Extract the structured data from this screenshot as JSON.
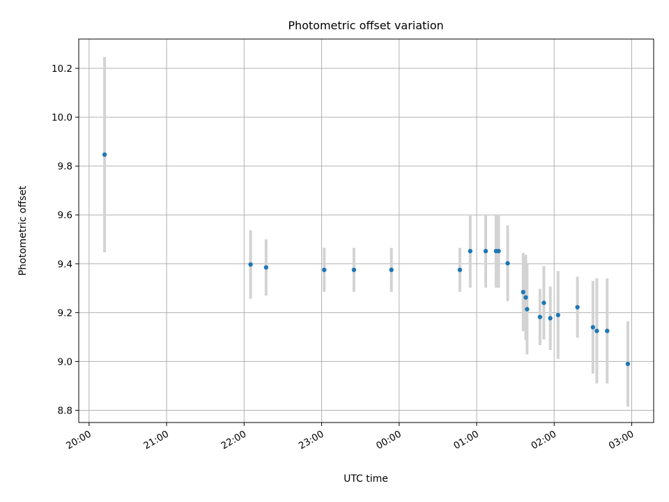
{
  "chart_data": {
    "type": "scatter",
    "title": "Photometric offset variation",
    "xlabel": "UTC time",
    "ylabel": "Photometric offset",
    "xlim": [
      "19:52",
      "03:17"
    ],
    "ylim": [
      8.75,
      10.32
    ],
    "x_ticks": [
      "20:00",
      "21:00",
      "22:00",
      "23:00",
      "00:00",
      "01:00",
      "02:00",
      "03:00"
    ],
    "y_ticks": [
      8.8,
      9.0,
      9.2,
      9.4,
      9.6,
      9.8,
      10.0,
      10.2
    ],
    "grid": true,
    "series": [
      {
        "errorbar_color": "#d3d3d3",
        "marker_color": "#1f77b4",
        "points": [
          {
            "t": "20:12",
            "y": 9.847,
            "err": 0.4
          },
          {
            "t": "22:05",
            "y": 9.397,
            "err": 0.14
          },
          {
            "t": "22:17",
            "y": 9.385,
            "err": 0.115
          },
          {
            "t": "23:02",
            "y": 9.375,
            "err": 0.09
          },
          {
            "t": "23:25",
            "y": 9.375,
            "err": 0.09
          },
          {
            "t": "23:54",
            "y": 9.375,
            "err": 0.09
          },
          {
            "t": "00:47",
            "y": 9.375,
            "err": 0.09
          },
          {
            "t": "00:55",
            "y": 9.452,
            "err": 0.15
          },
          {
            "t": "01:07",
            "y": 9.452,
            "err": 0.15
          },
          {
            "t": "01:15",
            "y": 9.452,
            "err": 0.15
          },
          {
            "t": "01:17",
            "y": 9.452,
            "err": 0.15
          },
          {
            "t": "01:24",
            "y": 9.402,
            "err": 0.155
          },
          {
            "t": "01:36",
            "y": 9.284,
            "err": 0.16
          },
          {
            "t": "01:38",
            "y": 9.262,
            "err": 0.175
          },
          {
            "t": "01:39",
            "y": 9.214,
            "err": 0.185
          },
          {
            "t": "01:49",
            "y": 9.182,
            "err": 0.115
          },
          {
            "t": "01:52",
            "y": 9.24,
            "err": 0.15
          },
          {
            "t": "01:57",
            "y": 9.177,
            "err": 0.13
          },
          {
            "t": "02:03",
            "y": 9.19,
            "err": 0.18
          },
          {
            "t": "02:18",
            "y": 9.222,
            "err": 0.125
          },
          {
            "t": "02:30",
            "y": 9.14,
            "err": 0.19
          },
          {
            "t": "02:33",
            "y": 9.125,
            "err": 0.215
          },
          {
            "t": "02:41",
            "y": 9.125,
            "err": 0.215
          },
          {
            "t": "02:57",
            "y": 8.99,
            "err": 0.175
          }
        ]
      }
    ]
  }
}
